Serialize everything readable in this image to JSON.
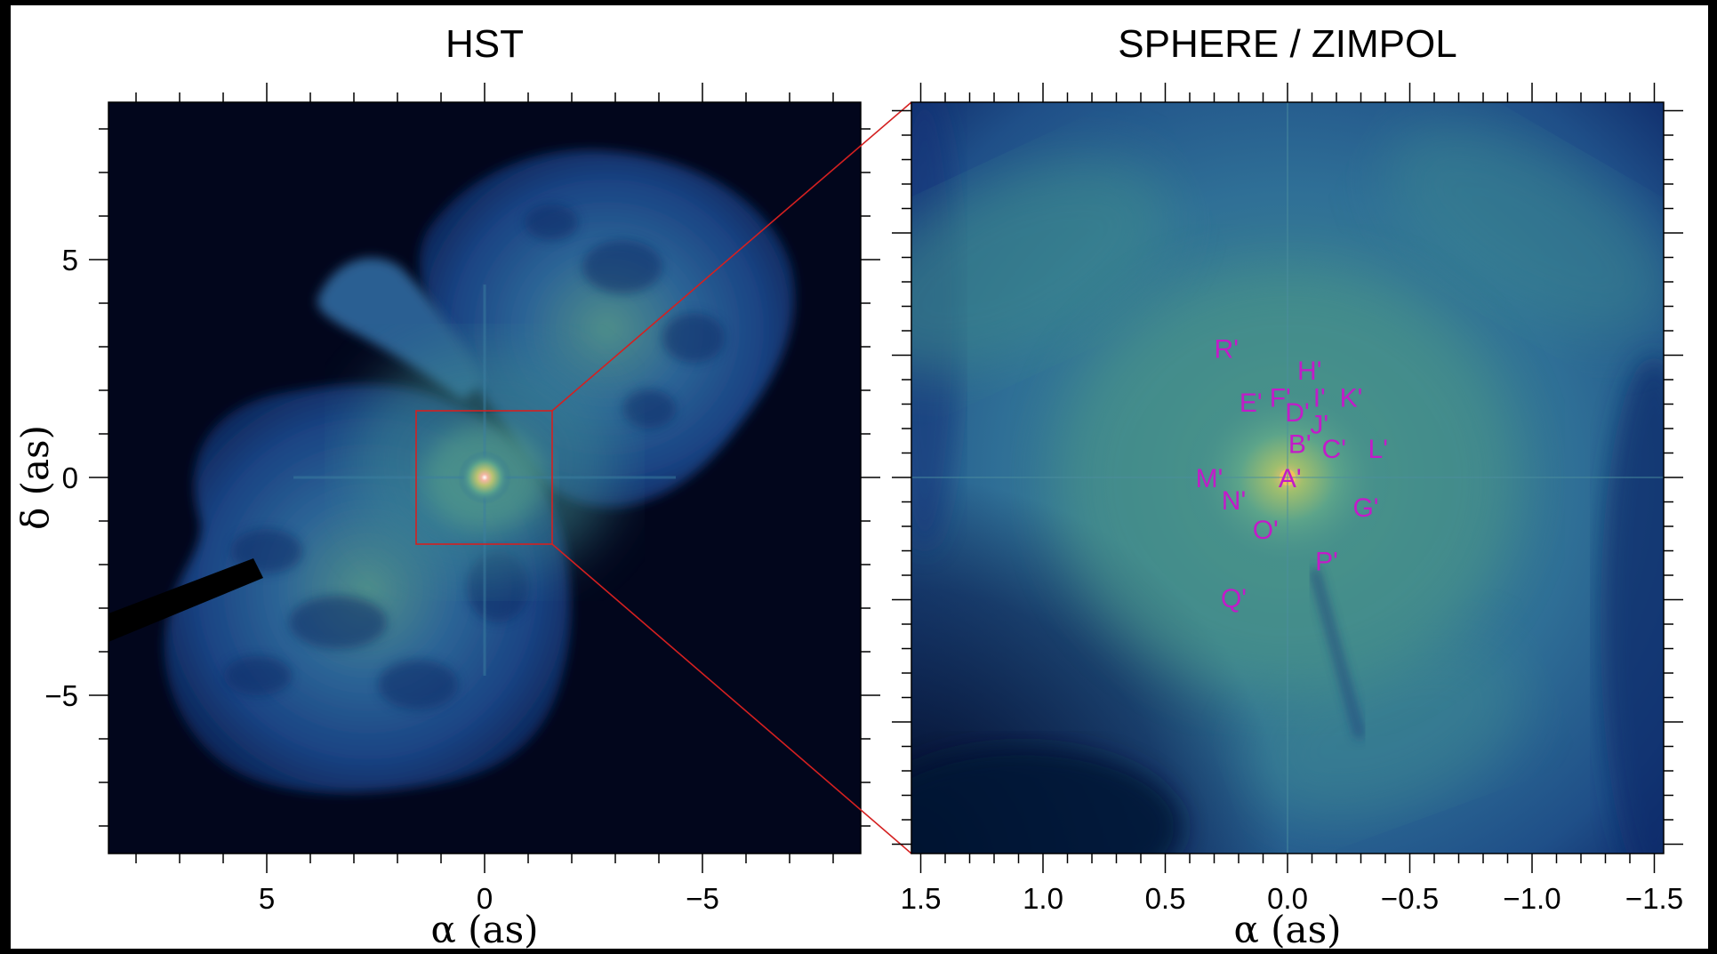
{
  "figure": {
    "left_panel": {
      "title": "HST",
      "xlabel": "α (as)",
      "ylabel": "δ (as)",
      "x_ticks": [
        "5",
        "0",
        "−5"
      ],
      "y_ticks": [
        "5",
        "0",
        "−5"
      ],
      "colormap_colors": [
        "#02061c",
        "#0b2455",
        "#1d4b8a",
        "#2f7aa0",
        "#4f9e8c",
        "#9fbe6e",
        "#f0b09a"
      ]
    },
    "right_panel": {
      "title": "SPHERE / ZIMPOL",
      "xlabel": "α (as)",
      "x_ticks": [
        "1.5",
        "1.0",
        "0.5",
        "0.0",
        "−0.5",
        "−1.0",
        "−1.5"
      ],
      "annotation_color": "#c21bc8",
      "knots": [
        "A'",
        "B'",
        "C'",
        "D'",
        "E'",
        "F'",
        "G'",
        "H'",
        "I'",
        "J'",
        "K'",
        "L'",
        "M'",
        "N'",
        "O'",
        "P'",
        "Q'",
        "R'"
      ]
    },
    "zoom_indicator_color": "#d42020"
  }
}
